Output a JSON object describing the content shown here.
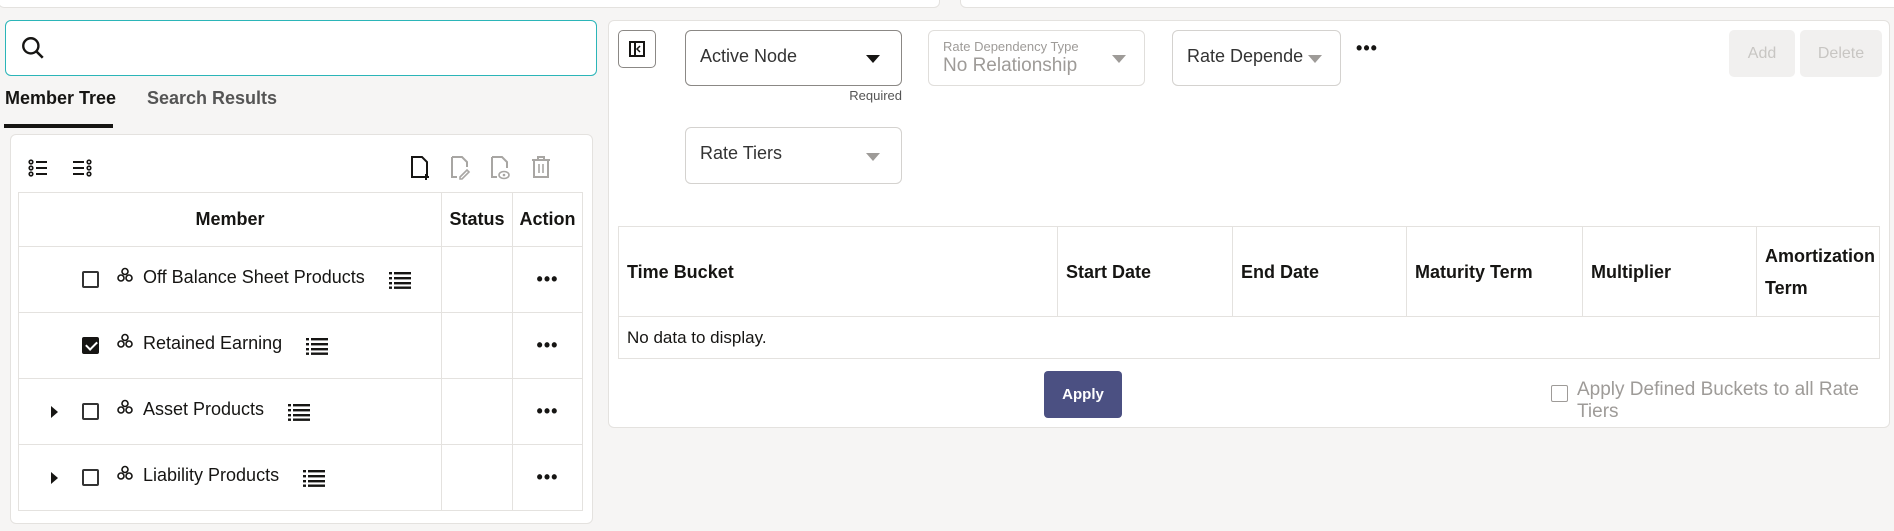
{
  "search": {
    "placeholder": "",
    "icon": "search-icon"
  },
  "tabs": [
    {
      "label": "Member Tree",
      "active": true
    },
    {
      "label": "Search Results",
      "active": false
    }
  ],
  "tree": {
    "columns": [
      "Member",
      "Status",
      "Action"
    ],
    "rows": [
      {
        "label": "Off Balance Sheet Products",
        "checked": false,
        "expandable": false
      },
      {
        "label": "Retained Earning",
        "checked": true,
        "expandable": false
      },
      {
        "label": "Asset Products",
        "checked": false,
        "expandable": true
      },
      {
        "label": "Liability Products",
        "checked": false,
        "expandable": true
      }
    ],
    "action_label": "•••"
  },
  "form": {
    "active_node": {
      "label": "Active Node",
      "helper": "Required"
    },
    "rate_dependency_type": {
      "label": "Rate Dependency Type",
      "value": "No Relationship"
    },
    "rate_dependency": {
      "label": "Rate Depende"
    },
    "more": "•••",
    "rate_tiers": {
      "label": "Rate Tiers"
    },
    "add_label": "Add",
    "delete_label": "Delete"
  },
  "buckets": {
    "columns": [
      "Time Bucket",
      "Start Date",
      "End Date",
      "Maturity Term",
      "Multiplier",
      "Amortization Term"
    ],
    "empty": "No data to display.",
    "apply_label": "Apply",
    "apply_all_label": "Apply Defined Buckets to all Rate Tiers"
  },
  "colors": {
    "accent": "#2bb5b8",
    "apply_button": "#4b5082"
  }
}
